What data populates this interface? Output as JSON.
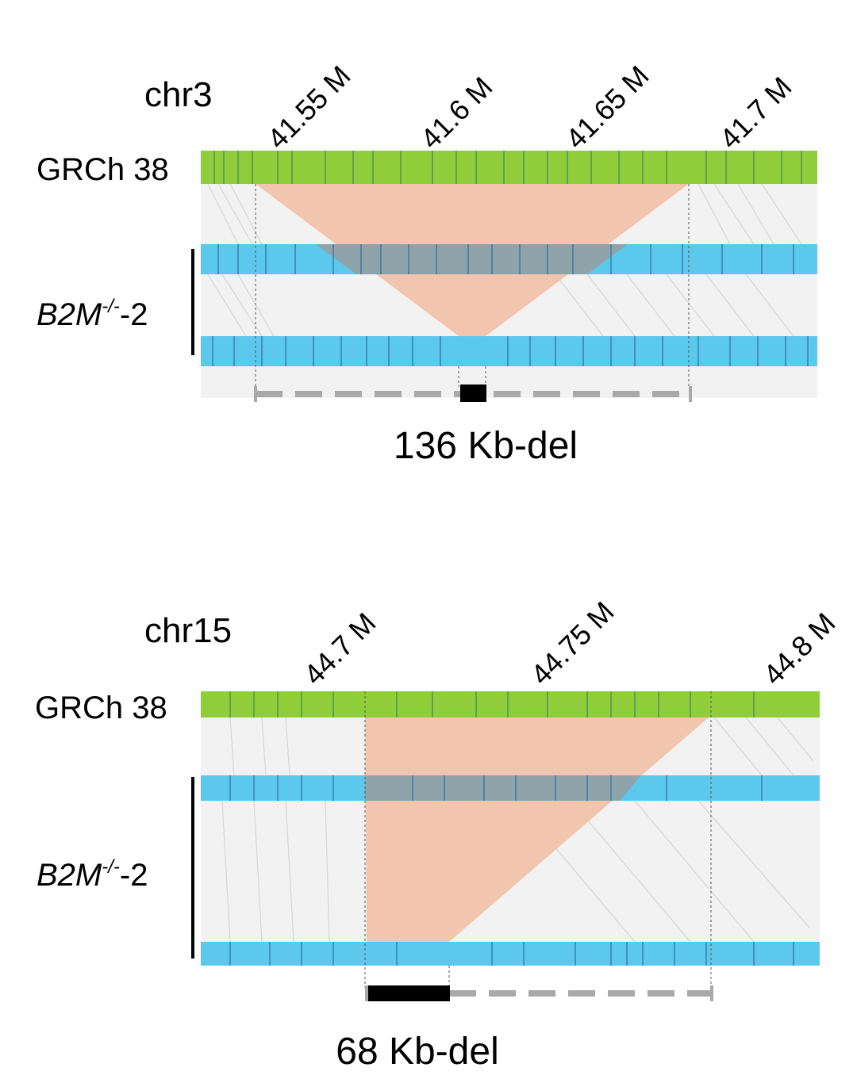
{
  "panels": [
    {
      "chromosome": "chr3",
      "reference": "GRCh 38",
      "sample": {
        "main": "B2M",
        "superscript": "-/-",
        "suffix": "-2"
      },
      "ticks": [
        "41.55 M",
        "41.6 M",
        "41.65 M",
        "41.7 M"
      ],
      "deletion_label": "136 Kb-del"
    },
    {
      "chromosome": "chr15",
      "reference": "GRCh 38",
      "sample": {
        "main": "B2M",
        "superscript": "-/-",
        "suffix": "-2"
      },
      "ticks": [
        "44.7 M",
        "44.75 M",
        "44.8 M"
      ],
      "deletion_label": "68 Kb-del"
    }
  ],
  "colors": {
    "reference_track": "#8fce3a",
    "sample_track": "#5cc8ec",
    "deletion_fill": "#f2c6ae",
    "background_panel": "#f2f2f2",
    "dashed_span": "#a9a9a9",
    "deletion_bar": "#000000"
  }
}
